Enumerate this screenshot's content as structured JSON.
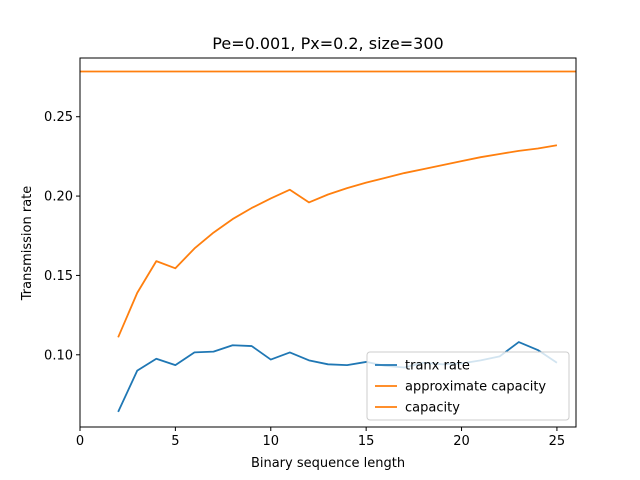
{
  "chart_data": {
    "type": "line",
    "title": "Pe=0.001, Px=0.2, size=300",
    "xlabel": "Binary sequence length",
    "ylabel": "Transmission rate",
    "xlim": [
      0,
      26
    ],
    "ylim": [
      0.0545,
      0.287
    ],
    "xticks": [
      0,
      5,
      10,
      15,
      20,
      25
    ],
    "xtick_labels": [
      "0",
      "5",
      "10",
      "15",
      "20",
      "25"
    ],
    "yticks": [
      0.1,
      0.15,
      0.2,
      0.25
    ],
    "ytick_labels": [
      "0.10",
      "0.15",
      "0.20",
      "0.25"
    ],
    "grid": false,
    "legend_position": "lower-right",
    "series": [
      {
        "name": "tranx rate",
        "color": "#1f77b4",
        "x": [
          2,
          3,
          4,
          5,
          6,
          7,
          8,
          9,
          10,
          11,
          12,
          13,
          14,
          15,
          16,
          17,
          18,
          19,
          20,
          21,
          22,
          23,
          24,
          25
        ],
        "y": [
          0.064,
          0.09,
          0.0975,
          0.0935,
          0.1015,
          0.102,
          0.106,
          0.1055,
          0.097,
          0.1015,
          0.0965,
          0.094,
          0.0935,
          0.0955,
          0.093,
          0.092,
          0.095,
          0.094,
          0.0945,
          0.0965,
          0.099,
          0.108,
          0.103,
          0.095
        ]
      },
      {
        "name": "approximate capacity",
        "color": "#ff7f0e",
        "x": [
          2,
          3,
          4,
          5,
          6,
          7,
          8,
          9,
          10,
          11,
          12,
          13,
          14,
          15,
          16,
          17,
          18,
          19,
          20,
          21,
          22,
          23,
          24,
          25
        ],
        "y": [
          0.111,
          0.139,
          0.159,
          0.1545,
          0.167,
          0.177,
          0.1855,
          0.1925,
          0.1985,
          0.204,
          0.196,
          0.201,
          0.205,
          0.2085,
          0.2115,
          0.2145,
          0.217,
          0.2195,
          0.222,
          0.2245,
          0.2265,
          0.2285,
          0.23,
          0.232
        ]
      },
      {
        "name": "capacity",
        "color": "#ff7f0e",
        "hline": 0.2785
      }
    ]
  }
}
